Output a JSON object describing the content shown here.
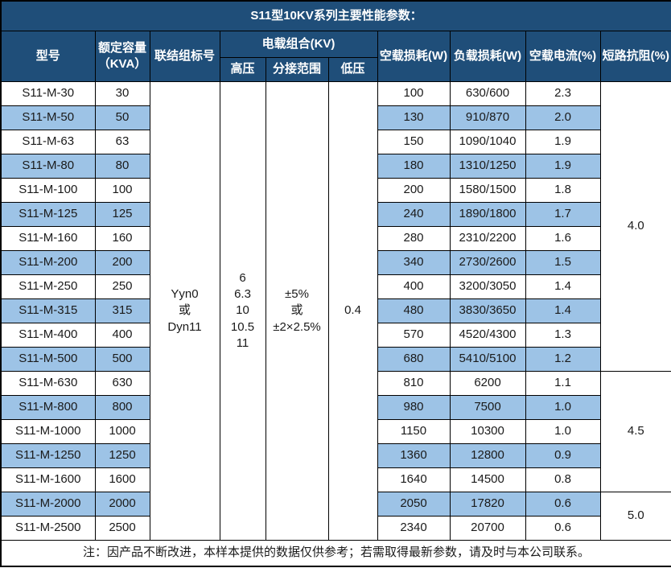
{
  "title": "S11型10KV系列主要性能参数：",
  "colors": {
    "header_bg": "#1F4E79",
    "header_text": "#FFFFFF",
    "row_bg": "#FFFFFF",
    "row_alt_bg": "#9DC3E6",
    "border": "#000000",
    "text": "#1A1A1A"
  },
  "header": {
    "model": "型号",
    "capacity": "额定容量\n（KVA）",
    "connection": "联结组标号",
    "voltage_group": "电载组合(KV)",
    "hv": "高压",
    "tap_range": "分接范围",
    "lv": "低压",
    "no_load_loss": "空载损耗(W)",
    "load_loss": "负载损耗(W)",
    "no_load_current": "空载电流(%)",
    "impedance": "短路抗阻(%)"
  },
  "merged": {
    "connection": "Yyn0\n或\nDyn11",
    "hv": "6\n6.3\n10\n10.5\n11",
    "tap_range": "±5%\n或\n±2×2.5%",
    "lv": "0.4"
  },
  "rows": [
    [
      "S11-M-30",
      "30",
      "100",
      "630/600",
      "2.3"
    ],
    [
      "S11-M-50",
      "50",
      "130",
      "910/870",
      "2.0"
    ],
    [
      "S11-M-63",
      "63",
      "150",
      "1090/1040",
      "1.9"
    ],
    [
      "S11-M-80",
      "80",
      "180",
      "1310/1250",
      "1.9"
    ],
    [
      "S11-M-100",
      "100",
      "200",
      "1580/1500",
      "1.8"
    ],
    [
      "S11-M-125",
      "125",
      "240",
      "1890/1800",
      "1.7"
    ],
    [
      "S11-M-160",
      "160",
      "280",
      "2310/2200",
      "1.6"
    ],
    [
      "S11-M-200",
      "200",
      "340",
      "2730/2600",
      "1.5"
    ],
    [
      "S11-M-250",
      "250",
      "400",
      "3200/3050",
      "1.4"
    ],
    [
      "S11-M-315",
      "315",
      "480",
      "3830/3650",
      "1.4"
    ],
    [
      "S11-M-400",
      "400",
      "570",
      "4520/4300",
      "1.3"
    ],
    [
      "S11-M-500",
      "500",
      "680",
      "5410/5100",
      "1.2"
    ],
    [
      "S11-M-630",
      "630",
      "810",
      "6200",
      "1.1"
    ],
    [
      "S11-M-800",
      "800",
      "980",
      "7500",
      "1.0"
    ],
    [
      "S11-M-1000",
      "1000",
      "1150",
      "10300",
      "1.0"
    ],
    [
      "S11-M-1250",
      "1250",
      "1360",
      "12800",
      "0.9"
    ],
    [
      "S11-M-1600",
      "1600",
      "1640",
      "14500",
      "0.8"
    ],
    [
      "S11-M-2000",
      "2000",
      "2050",
      "17820",
      "0.6"
    ],
    [
      "S11-M-2500",
      "2500",
      "2340",
      "20700",
      "0.6"
    ]
  ],
  "impedance_groups": [
    {
      "value": "4.0",
      "rowspan": 12
    },
    {
      "value": "4.5",
      "rowspan": 5
    },
    {
      "value": "5.0",
      "rowspan": 2
    }
  ],
  "note": "注：因产品不断改进，本样本提供的数据仅供参考；若需取得最新参数，请及时与本公司联系。"
}
